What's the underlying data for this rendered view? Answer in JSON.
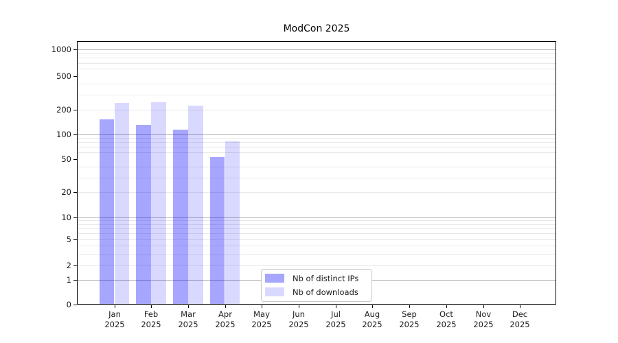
{
  "chart_data": {
    "type": "bar",
    "title": "ModCon 2025",
    "x_tick_months": [
      "Jan",
      "Feb",
      "Mar",
      "Apr",
      "May",
      "Jun",
      "Jul",
      "Aug",
      "Sep",
      "Oct",
      "Nov",
      "Dec"
    ],
    "x_tick_year": "2025",
    "series": [
      {
        "name": "Nb of distinct IPs",
        "color": "rgba(0,0,255,0.35)",
        "color_on_white": "#a6a6ff",
        "values": [
          150,
          130,
          113,
          53,
          0,
          0,
          0,
          0,
          0,
          0,
          0,
          0
        ]
      },
      {
        "name": "Nb of downloads",
        "color": "rgba(0,0,255,0.15)",
        "color_on_white": "#d9d9ff",
        "values": [
          240,
          245,
          220,
          82,
          0,
          0,
          0,
          0,
          0,
          0,
          0,
          0
        ]
      }
    ],
    "yticks": [
      0,
      1,
      2,
      5,
      10,
      20,
      50,
      100,
      200,
      500,
      1000
    ],
    "yscale": "symlog (logarithmic above 1, linear 0-1)",
    "ylim": [
      0,
      1260
    ],
    "xlabel": "",
    "ylabel": "",
    "grid": {
      "horizontal_major": true,
      "horizontal_minor": true
    },
    "legend": {
      "position": "inside lower-center",
      "entries": [
        "Nb of distinct IPs",
        "Nb of downloads"
      ]
    }
  },
  "colors": {
    "major_grid": "#b3b3b3",
    "minor_grid": "#e8e8e8",
    "axis": "#000000",
    "text": "#1a1a1a",
    "legend_border": "#c9c9c9",
    "background": "#ffffff"
  }
}
